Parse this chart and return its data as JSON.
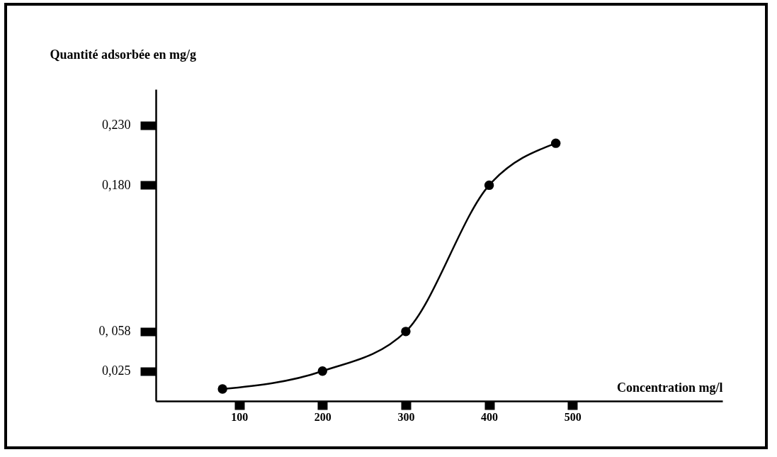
{
  "chart_data": {
    "type": "line",
    "xlabel": "Concentration mg/l",
    "ylabel": "Quantité adsorbée en mg/g",
    "x": [
      80,
      200,
      300,
      400,
      480
    ],
    "series": [
      {
        "color": "#000000",
        "values": [
          0.01,
          0.025,
          0.058,
          0.18,
          0.215
        ]
      }
    ],
    "xlim": [
      0,
      680
    ],
    "xticks": [
      100,
      200,
      300,
      400,
      500
    ],
    "ylim": [
      0,
      0.26
    ],
    "yticks": [
      {
        "value": 0.025,
        "label": "0,025"
      },
      {
        "value": 0.058,
        "label": "0, 058"
      },
      {
        "value": 0.18,
        "label": "0,180"
      },
      {
        "value": 0.23,
        "label": "0,230"
      }
    ],
    "marker": "circle",
    "line_style": "solid",
    "grid": false
  }
}
